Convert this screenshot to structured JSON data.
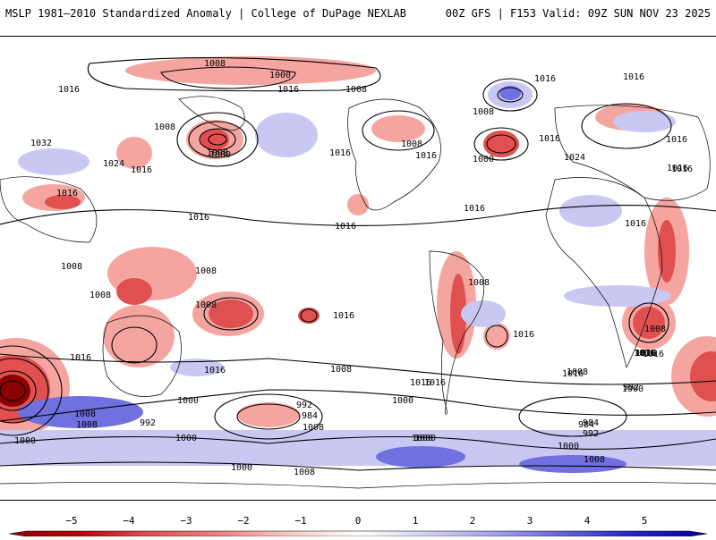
{
  "header": {
    "title_left": "MSLP 1981–2010 Standardized Anomaly | College of DuPage NEXLAB",
    "title_right": "00Z GFS | F153 Valid: 09Z SUN NOV 23 2025"
  },
  "colors": {
    "neg_strong": "#8b0000",
    "neg_mid": "#e05050",
    "neg_light": "#f5a5a0",
    "pos_light": "#c8c8f2",
    "pos_mid": "#7070e0",
    "pos_strong": "#0000c0",
    "land_outline": "#000000"
  },
  "map": {
    "contour_labels": [
      "1008",
      "1000",
      "1016",
      "1016",
      "1008",
      "1016",
      "1008",
      "1008",
      "1008",
      "1016",
      "1032",
      "1024",
      "1016",
      "1000",
      "1016",
      "1008",
      "1016",
      "1016",
      "1000",
      "1024",
      "1016",
      "1016",
      "1016",
      "1016",
      "1016",
      "1016",
      "1008",
      "1008",
      "1008",
      "1016",
      "1016",
      "1008",
      "1016",
      "1016",
      "1016",
      "1008",
      "1016",
      "1008",
      "1008",
      "1016",
      "1008",
      "1016",
      "1000",
      "1000",
      "992",
      "984",
      "1000",
      "992",
      "984",
      "992",
      "1000",
      "1008",
      "1000",
      "984",
      "1000",
      "992",
      "1000",
      "1008",
      "1000",
      "1008",
      "1016",
      "1016",
      "1016",
      "1016",
      "1016",
      "1008",
      "1000",
      "1008"
    ]
  },
  "colorbar": {
    "ticks": [
      "−5",
      "−4",
      "−3",
      "−2",
      "−1",
      "0",
      "1",
      "2",
      "3",
      "4",
      "5"
    ]
  }
}
